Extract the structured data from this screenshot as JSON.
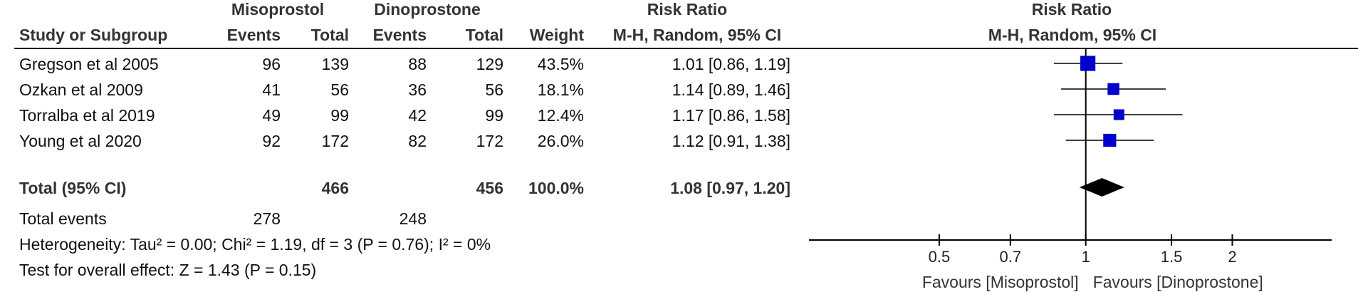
{
  "table": {
    "group_headers": {
      "experimental": "Misoprostol",
      "control": "Dinoprostone",
      "risk_ratio_text": "Risk Ratio",
      "risk_ratio_plot": "Risk Ratio"
    },
    "col_headers": {
      "study": "Study or Subgroup",
      "exp_events": "Events",
      "exp_total": "Total",
      "ctl_events": "Events",
      "ctl_total": "Total",
      "weight": "Weight",
      "method_text": "M-H, Random, 95% CI",
      "method_plot": "M-H, Random, 95% CI"
    },
    "studies": [
      {
        "name": "Gregson et al 2005",
        "exp_events": "96",
        "exp_total": "139",
        "ctl_events": "88",
        "ctl_total": "129",
        "weight": "43.5%",
        "rr_text": "1.01 [0.86, 1.19]"
      },
      {
        "name": "Ozkan et al 2009",
        "exp_events": "41",
        "exp_total": "56",
        "ctl_events": "36",
        "ctl_total": "56",
        "weight": "18.1%",
        "rr_text": "1.14 [0.89, 1.46]"
      },
      {
        "name": "Torralba et al 2019",
        "exp_events": "49",
        "exp_total": "99",
        "ctl_events": "42",
        "ctl_total": "99",
        "weight": "12.4%",
        "rr_text": "1.17 [0.86, 1.58]"
      },
      {
        "name": "Young et al 2020",
        "exp_events": "92",
        "exp_total": "172",
        "ctl_events": "82",
        "ctl_total": "172",
        "weight": "26.0%",
        "rr_text": "1.12 [0.91, 1.38]"
      }
    ],
    "total": {
      "label": "Total (95% CI)",
      "exp_total": "466",
      "ctl_total": "456",
      "weight": "100.0%",
      "rr_text": "1.08 [0.97, 1.20]"
    },
    "total_events": {
      "label": "Total events",
      "exp": "278",
      "ctl": "248"
    },
    "heterogeneity": "Heterogeneity: Tau² = 0.00; Chi² = 1.19, df = 3 (P = 0.76); I² = 0%",
    "overall_effect": "Test for overall effect: Z = 1.43 (P = 0.15)"
  },
  "chart_data": {
    "type": "scatter",
    "x_scale": "log",
    "xlim": [
      0.27,
      3.2
    ],
    "ticks": [
      0.5,
      0.7,
      1,
      1.5,
      2
    ],
    "tick_labels": [
      "0.5",
      "0.7",
      "1",
      "1.5",
      "2"
    ],
    "reference_line": 1,
    "favours_left": "Favours [Misoprostol]",
    "favours_right": "Favours [Dinoprostone]",
    "points": [
      {
        "study": "Gregson et al 2005",
        "rr": 1.01,
        "lo": 0.86,
        "hi": 1.19,
        "weight": 43.5
      },
      {
        "study": "Ozkan et al 2009",
        "rr": 1.14,
        "lo": 0.89,
        "hi": 1.46,
        "weight": 18.1
      },
      {
        "study": "Torralba et al 2019",
        "rr": 1.17,
        "lo": 0.86,
        "hi": 1.58,
        "weight": 12.4
      },
      {
        "study": "Young et al 2020",
        "rr": 1.12,
        "lo": 0.91,
        "hi": 1.38,
        "weight": 26.0
      }
    ],
    "pooled": {
      "rr": 1.08,
      "lo": 0.97,
      "hi": 1.2
    },
    "marker_color": "#0000cc"
  }
}
